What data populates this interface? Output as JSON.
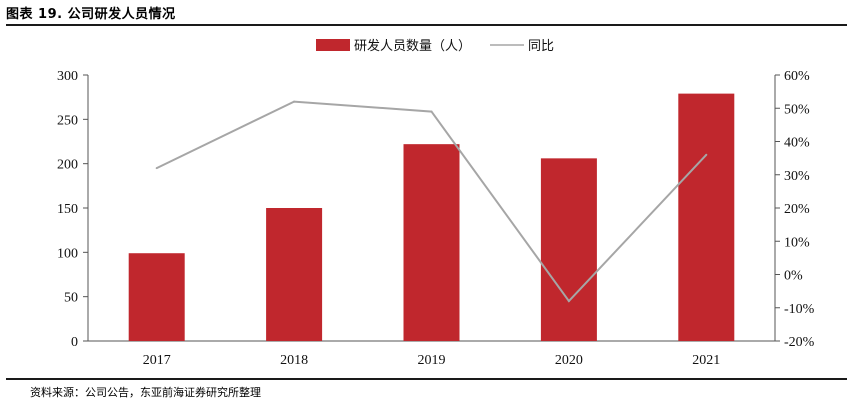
{
  "figure": {
    "title": "图表 19. 公司研发人员情况",
    "source": "资料来源：公司公告，东亚前海证券研究所整理"
  },
  "colors": {
    "bar": "#C0272D",
    "line": "#A6A6A6",
    "axis": "#555555"
  },
  "chart_data": {
    "type": "bar",
    "title": "",
    "categories": [
      "2017",
      "2018",
      "2019",
      "2020",
      "2021"
    ],
    "series": [
      {
        "name": "研发人员数量（人）",
        "type": "bar",
        "axis": "left",
        "values": [
          99,
          150,
          222,
          206,
          279
        ]
      },
      {
        "name": "同比",
        "type": "line",
        "axis": "right",
        "values": [
          32,
          52,
          49,
          -8,
          36
        ]
      }
    ],
    "y_left": {
      "ylim": [
        0,
        300
      ],
      "ticks": [
        "0",
        "50",
        "100",
        "150",
        "200",
        "250",
        "300"
      ]
    },
    "y_right": {
      "ylim": [
        -20,
        60
      ],
      "ticks": [
        "-20%",
        "-10%",
        "0%",
        "10%",
        "20%",
        "30%",
        "40%",
        "50%",
        "60%"
      ]
    },
    "xlabel": "",
    "ylabel": "",
    "grid": false,
    "legend": "top-center"
  }
}
